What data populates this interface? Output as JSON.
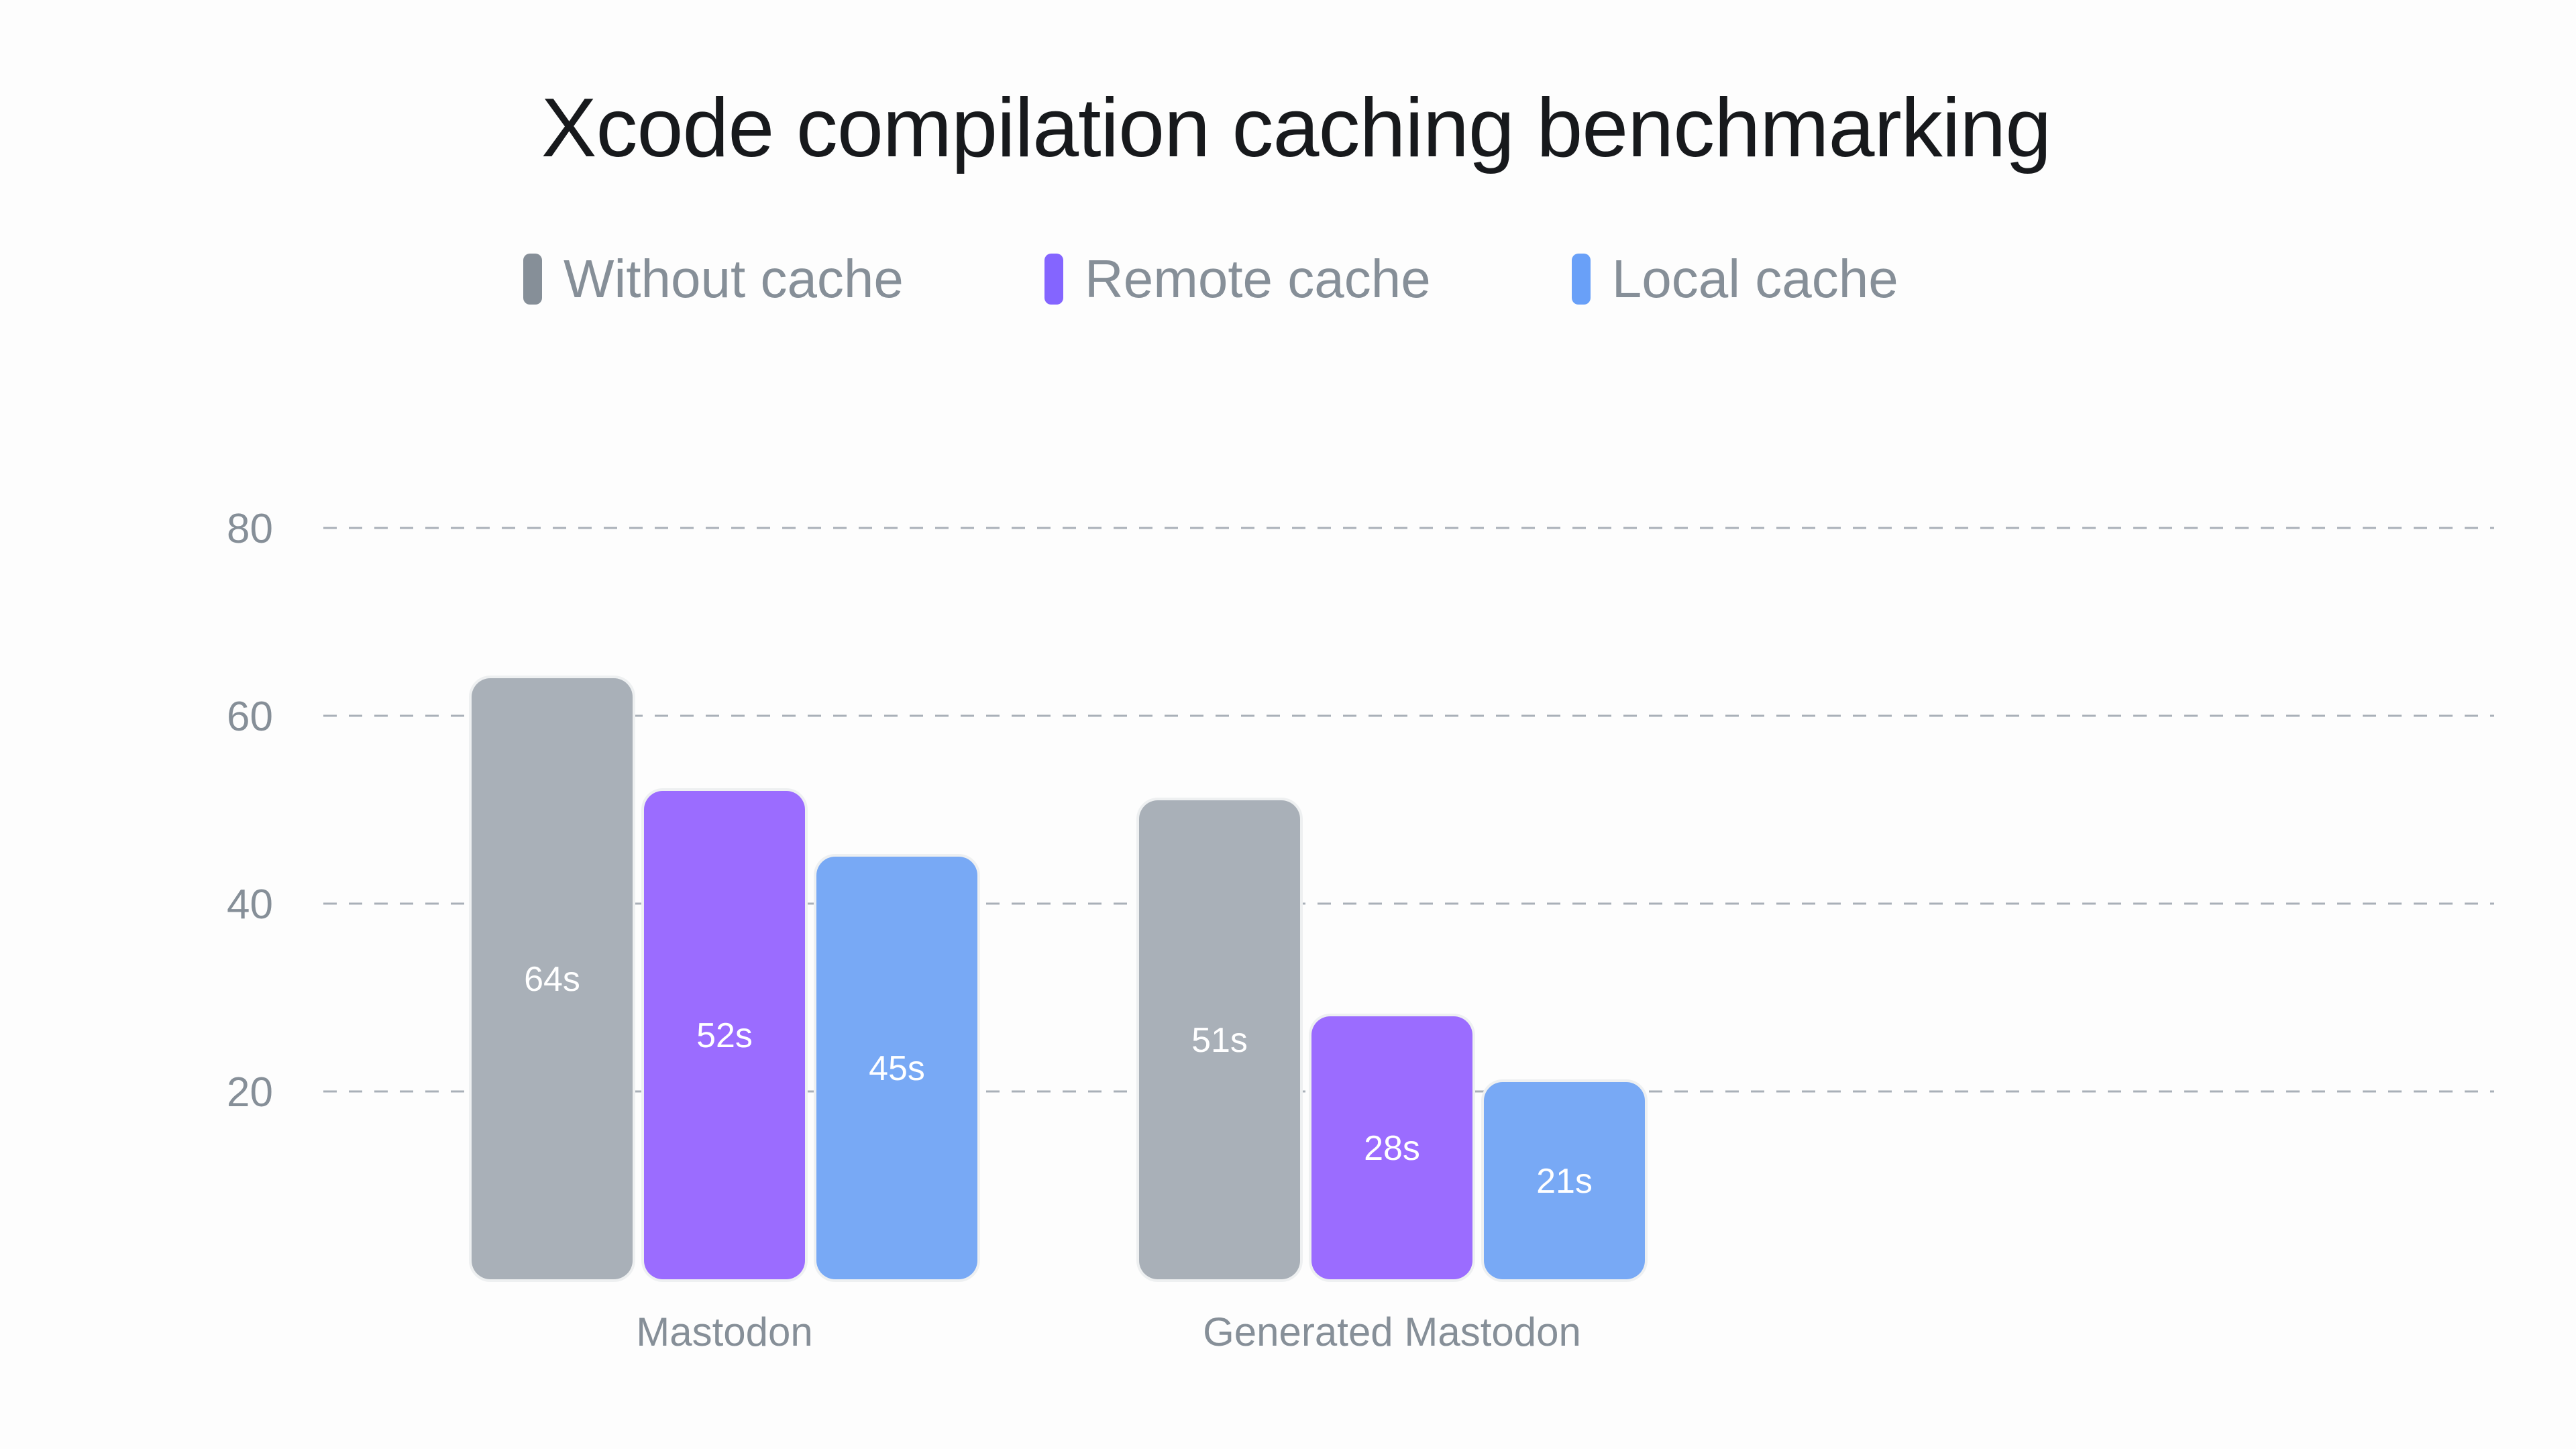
{
  "chart_data": {
    "type": "bar",
    "title": "Xcode compilation caching benchmarking",
    "categories": [
      "Mastodon",
      "Generated Mastodon"
    ],
    "series": [
      {
        "name": "Without cache",
        "color": "#A9B0B8",
        "legend_color": "#868F98",
        "values": [
          64,
          51
        ],
        "labels": [
          "64s",
          "51s"
        ]
      },
      {
        "name": "Remote cache",
        "color": "#9B6CFF",
        "legend_color": "#8465FF",
        "values": [
          52,
          28
        ],
        "labels": [
          "52s",
          "28s"
        ]
      },
      {
        "name": "Local cache",
        "color": "#78A9F5",
        "legend_color": "#69A0F8",
        "values": [
          45,
          21
        ],
        "labels": [
          "45s",
          "21s"
        ]
      }
    ],
    "yticks": [
      20,
      40,
      60,
      80
    ],
    "ylim": [
      0,
      96
    ],
    "grid": true,
    "legend": "top",
    "xlabel": "",
    "ylabel": ""
  }
}
